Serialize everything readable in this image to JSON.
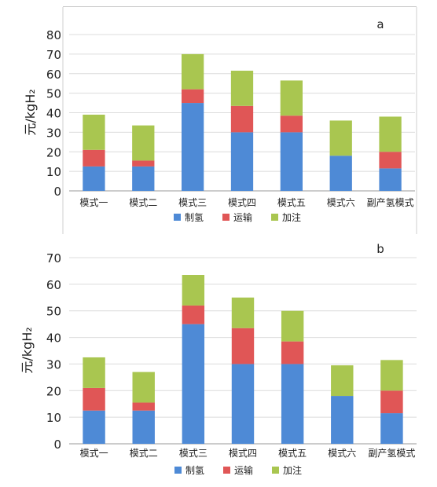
{
  "chart_data": [
    {
      "type": "bar",
      "stacked": true,
      "panel_label": "a",
      "categories": [
        "模式一",
        "模式二",
        "模式三",
        "模式四",
        "模式五",
        "模式六",
        "副产氢模式"
      ],
      "series": [
        {
          "name": "制氢",
          "color": "#4e8ad6",
          "values": [
            12.5,
            12.5,
            45.0,
            30.0,
            30.0,
            18.0,
            11.5
          ]
        },
        {
          "name": "运输",
          "color": "#e05656",
          "values": [
            8.5,
            3.0,
            7.0,
            13.5,
            8.5,
            0.0,
            8.5
          ]
        },
        {
          "name": "加注",
          "color": "#a9c650",
          "values": [
            18.0,
            18.0,
            18.0,
            18.0,
            18.0,
            18.0,
            18.0
          ]
        }
      ],
      "ylabel": "元/kgH₂",
      "ylim": [
        0,
        80
      ],
      "yticks": [
        0,
        10,
        20,
        30,
        40,
        50,
        60,
        70,
        80
      ],
      "grid": true,
      "legend_position": "bottom"
    },
    {
      "type": "bar",
      "stacked": true,
      "panel_label": "b",
      "categories": [
        "模式一",
        "模式二",
        "模式三",
        "模式四",
        "模式五",
        "模式六",
        "副产氢模式"
      ],
      "series": [
        {
          "name": "制氢",
          "color": "#4e8ad6",
          "values": [
            12.5,
            12.5,
            45.0,
            30.0,
            30.0,
            18.0,
            11.5
          ]
        },
        {
          "name": "运输",
          "color": "#e05656",
          "values": [
            8.5,
            3.0,
            7.0,
            13.5,
            8.5,
            0.0,
            8.5
          ]
        },
        {
          "name": "加注",
          "color": "#a9c650",
          "values": [
            11.5,
            11.5,
            11.5,
            11.5,
            11.5,
            11.5,
            11.5
          ]
        }
      ],
      "ylabel": "元/kgH₂",
      "ylim": [
        0,
        70
      ],
      "yticks": [
        0,
        10,
        20,
        30,
        40,
        50,
        60,
        70
      ],
      "grid": true,
      "legend_position": "bottom"
    }
  ]
}
